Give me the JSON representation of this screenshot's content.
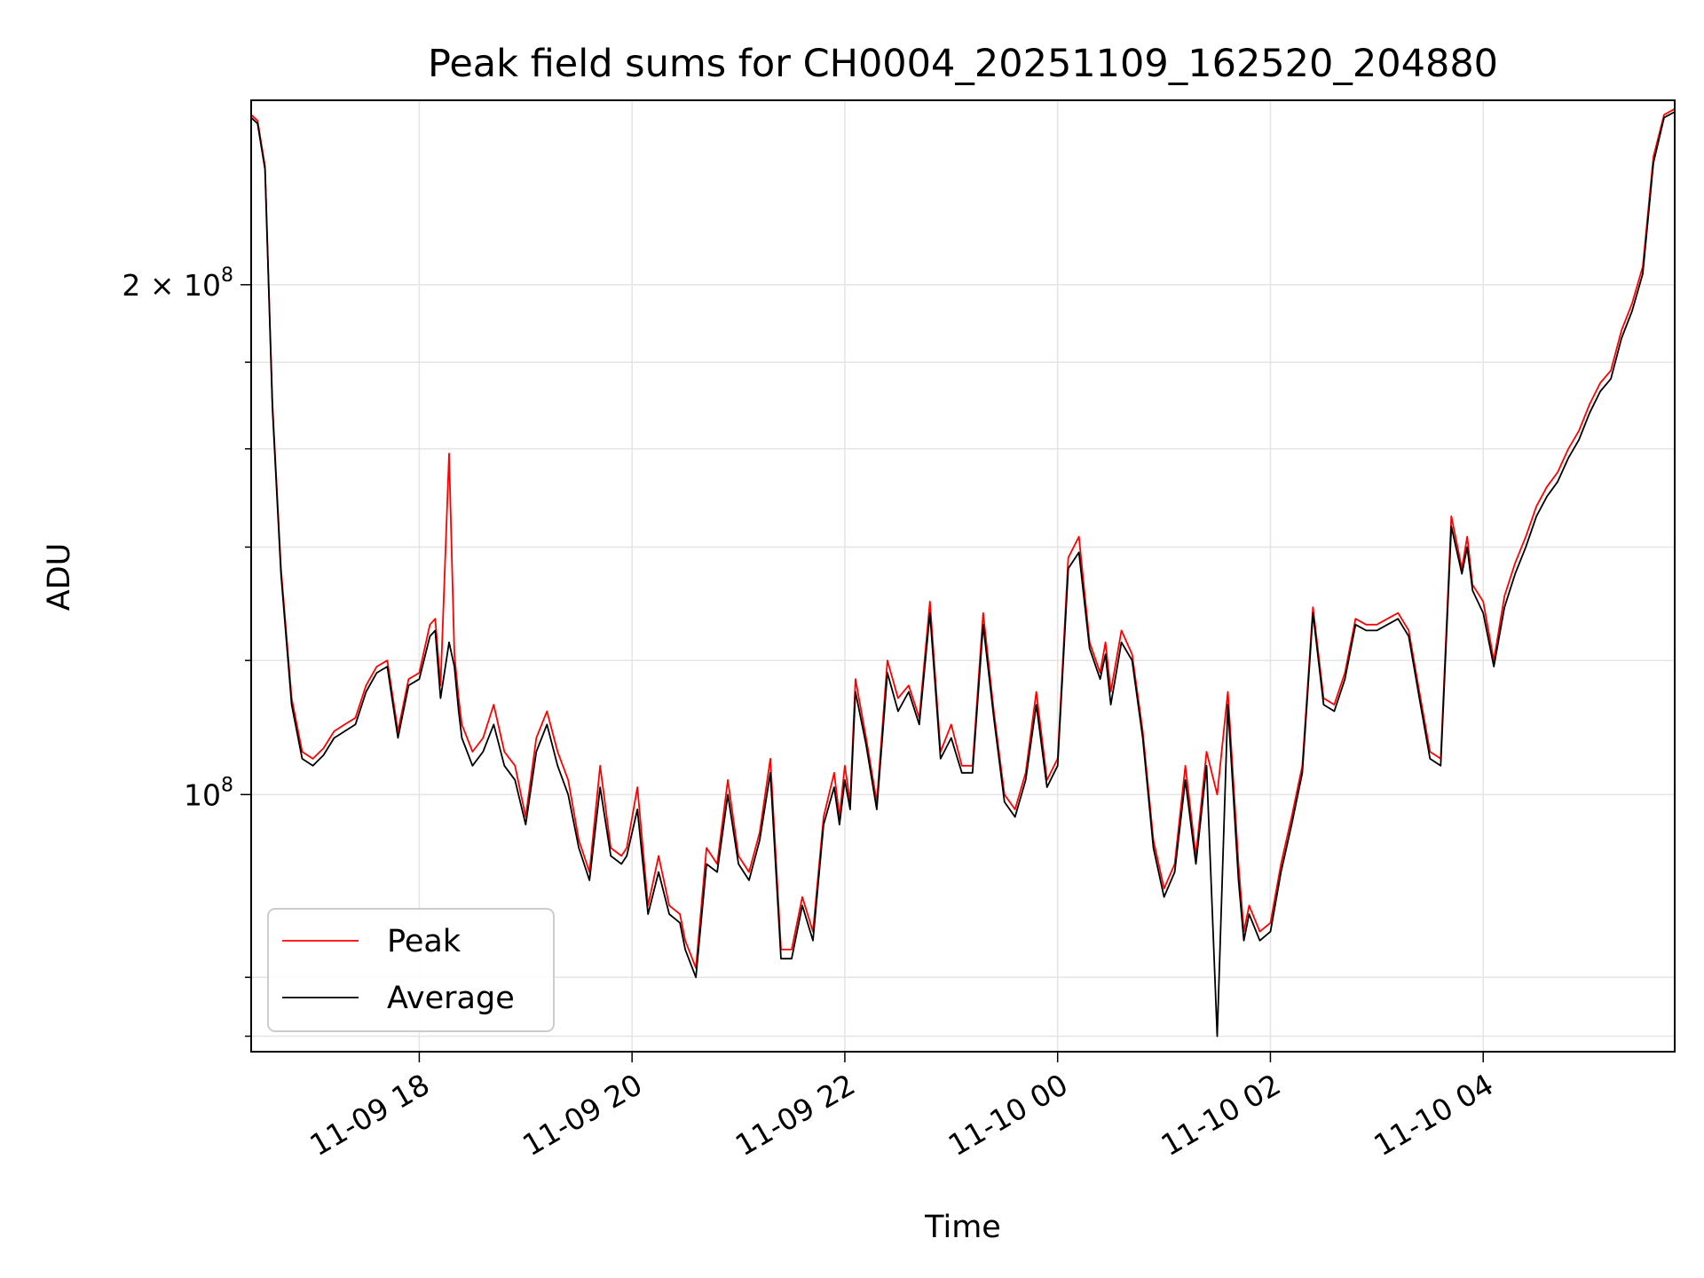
{
  "chart_data": {
    "type": "line",
    "title": "Peak field sums for CH0004_20251109_162520_204880",
    "xlabel": "Time",
    "ylabel": "ADU",
    "yscale": "log",
    "grid": true,
    "legend_loc": "lower left",
    "xlim_hours": [
      -1.58,
      11.8
    ],
    "ylim": [
      70500000,
      257000000
    ],
    "x_unit": "hours since 2025-11-09 18:00",
    "x_ticks": [
      {
        "value": 0,
        "label": "11-09 18"
      },
      {
        "value": 2,
        "label": "11-09 20"
      },
      {
        "value": 4,
        "label": "11-09 22"
      },
      {
        "value": 6,
        "label": "11-10 00"
      },
      {
        "value": 8,
        "label": "11-10 02"
      },
      {
        "value": 10,
        "label": "11-10 04"
      }
    ],
    "y_ticks_major": [
      {
        "value": 100000000,
        "label_base": "10",
        "label_exp": "8",
        "label_prefix": ""
      },
      {
        "value": 200000000,
        "label_base": "10",
        "label_exp": "8",
        "label_prefix": "2 × "
      }
    ],
    "y_ticks_minor": [
      72000000,
      78000000,
      120000000,
      140000000,
      160000000,
      180000000
    ],
    "series": [
      {
        "name": "Peak",
        "color": "#ff0000",
        "x": [
          -1.58,
          -1.52,
          -1.45,
          -1.38,
          -1.3,
          -1.2,
          -1.1,
          -1.0,
          -0.9,
          -0.8,
          -0.7,
          -0.6,
          -0.5,
          -0.4,
          -0.3,
          -0.2,
          -0.1,
          0.0,
          0.1,
          0.15,
          0.2,
          0.28,
          0.33,
          0.37,
          0.4,
          0.5,
          0.6,
          0.7,
          0.8,
          0.9,
          1.0,
          1.1,
          1.2,
          1.3,
          1.4,
          1.5,
          1.6,
          1.7,
          1.8,
          1.9,
          1.95,
          2.05,
          2.15,
          2.25,
          2.35,
          2.45,
          2.5,
          2.6,
          2.7,
          2.8,
          2.9,
          3.0,
          3.1,
          3.2,
          3.3,
          3.4,
          3.5,
          3.6,
          3.7,
          3.8,
          3.9,
          3.95,
          4.0,
          4.05,
          4.1,
          4.2,
          4.3,
          4.4,
          4.5,
          4.6,
          4.7,
          4.8,
          4.9,
          5.0,
          5.1,
          5.2,
          5.3,
          5.4,
          5.5,
          5.6,
          5.7,
          5.8,
          5.9,
          6.0,
          6.1,
          6.2,
          6.3,
          6.4,
          6.45,
          6.5,
          6.6,
          6.7,
          6.8,
          6.9,
          7.0,
          7.1,
          7.2,
          7.3,
          7.4,
          7.5,
          7.6,
          7.7,
          7.75,
          7.8,
          7.9,
          8.0,
          8.1,
          8.2,
          8.3,
          8.4,
          8.5,
          8.6,
          8.7,
          8.8,
          8.9,
          9.0,
          9.1,
          9.2,
          9.3,
          9.4,
          9.5,
          9.6,
          9.7,
          9.8,
          9.85,
          9.9,
          10.0,
          10.1,
          10.2,
          10.3,
          10.4,
          10.5,
          10.6,
          10.7,
          10.8,
          10.9,
          11.0,
          11.1,
          11.2,
          11.3,
          11.4,
          11.5,
          11.6,
          11.7,
          11.8
        ],
        "values": [
          252000000,
          250000000,
          235000000,
          170000000,
          136000000,
          114000000,
          106000000,
          105000000,
          106500000,
          109000000,
          110000000,
          111000000,
          116000000,
          119000000,
          120000000,
          109000000,
          117000000,
          118000000,
          126000000,
          127000000,
          116000000,
          159000000,
          121000000,
          114000000,
          110000000,
          106000000,
          108000000,
          113000000,
          106000000,
          104000000,
          97000000,
          108000000,
          112000000,
          106000000,
          102000000,
          94000000,
          90000000,
          104000000,
          93000000,
          92000000,
          93000000,
          101000000,
          86000000,
          92000000,
          86000000,
          85000000,
          82000000,
          79000000,
          93000000,
          91000000,
          102000000,
          92000000,
          90000000,
          95000000,
          105000000,
          81000000,
          81000000,
          87000000,
          83000000,
          97000000,
          103000000,
          97000000,
          104000000,
          99000000,
          117000000,
          108000000,
          99000000,
          120000000,
          114000000,
          116000000,
          111000000,
          130000000,
          106000000,
          110000000,
          104000000,
          104000000,
          128000000,
          112000000,
          100000000,
          98000000,
          103000000,
          115000000,
          102000000,
          105000000,
          138000000,
          142000000,
          123000000,
          118000000,
          123000000,
          115000000,
          125000000,
          121000000,
          109000000,
          94000000,
          88000000,
          91000000,
          104000000,
          92000000,
          106000000,
          100000000,
          115000000,
          91000000,
          83000000,
          86000000,
          83000000,
          84000000,
          91000000,
          97000000,
          104000000,
          129000000,
          114000000,
          113000000,
          118000000,
          127000000,
          126000000,
          126000000,
          127000000,
          128000000,
          125000000,
          115000000,
          106000000,
          105000000,
          146000000,
          136000000,
          142000000,
          133000000,
          130000000,
          120000000,
          131000000,
          137000000,
          142000000,
          148000000,
          152000000,
          155000000,
          160000000,
          164000000,
          170000000,
          175000000,
          178000000,
          188000000,
          195000000,
          205000000,
          238000000,
          252000000,
          254000000
        ]
      },
      {
        "name": "Average",
        "color": "#000000",
        "x": [
          -1.58,
          -1.52,
          -1.45,
          -1.38,
          -1.3,
          -1.2,
          -1.1,
          -1.0,
          -0.9,
          -0.8,
          -0.7,
          -0.6,
          -0.5,
          -0.4,
          -0.3,
          -0.2,
          -0.1,
          0.0,
          0.1,
          0.15,
          0.2,
          0.28,
          0.33,
          0.37,
          0.4,
          0.5,
          0.6,
          0.7,
          0.8,
          0.9,
          1.0,
          1.1,
          1.2,
          1.3,
          1.4,
          1.5,
          1.6,
          1.7,
          1.8,
          1.9,
          1.95,
          2.05,
          2.15,
          2.25,
          2.35,
          2.45,
          2.5,
          2.6,
          2.7,
          2.8,
          2.9,
          3.0,
          3.1,
          3.2,
          3.3,
          3.4,
          3.5,
          3.6,
          3.7,
          3.8,
          3.9,
          3.95,
          4.0,
          4.05,
          4.1,
          4.2,
          4.3,
          4.4,
          4.5,
          4.6,
          4.7,
          4.8,
          4.9,
          5.0,
          5.1,
          5.2,
          5.3,
          5.4,
          5.5,
          5.6,
          5.7,
          5.8,
          5.9,
          6.0,
          6.1,
          6.2,
          6.3,
          6.4,
          6.45,
          6.5,
          6.6,
          6.7,
          6.8,
          6.9,
          7.0,
          7.1,
          7.2,
          7.3,
          7.4,
          7.5,
          7.6,
          7.7,
          7.75,
          7.8,
          7.9,
          8.0,
          8.1,
          8.2,
          8.3,
          8.4,
          8.5,
          8.6,
          8.7,
          8.8,
          8.9,
          9.0,
          9.1,
          9.2,
          9.3,
          9.4,
          9.5,
          9.6,
          9.7,
          9.8,
          9.85,
          9.9,
          10.0,
          10.1,
          10.2,
          10.3,
          10.4,
          10.5,
          10.6,
          10.7,
          10.8,
          10.9,
          11.0,
          11.1,
          11.2,
          11.3,
          11.4,
          11.5,
          11.6,
          11.7,
          11.8
        ],
        "values": [
          251000000,
          249000000,
          234000000,
          169000000,
          135000000,
          113000000,
          105000000,
          104000000,
          105500000,
          108000000,
          109000000,
          110000000,
          115000000,
          118000000,
          119000000,
          108000000,
          116000000,
          117000000,
          124000000,
          125000000,
          114000000,
          123000000,
          119000000,
          112000000,
          108000000,
          104000000,
          106000000,
          110000000,
          104000000,
          102000000,
          96000000,
          106000000,
          110000000,
          104000000,
          100000000,
          93000000,
          89000000,
          101000000,
          92000000,
          91000000,
          92000000,
          98000000,
          85000000,
          90000000,
          85000000,
          84000000,
          81000000,
          78000000,
          91000000,
          90000000,
          100000000,
          91000000,
          89000000,
          94000000,
          103000000,
          80000000,
          80000000,
          86000000,
          82000000,
          96000000,
          101000000,
          96000000,
          102000000,
          98000000,
          115000000,
          107000000,
          98000000,
          118000000,
          112000000,
          115000000,
          110000000,
          128000000,
          105000000,
          108000000,
          103000000,
          103000000,
          126000000,
          111000000,
          99000000,
          97000000,
          102000000,
          113000000,
          101000000,
          104000000,
          136000000,
          139000000,
          122000000,
          117000000,
          121000000,
          113000000,
          123000000,
          120000000,
          108000000,
          93000000,
          87000000,
          90000000,
          102000000,
          91000000,
          104000000,
          72000000,
          113000000,
          89000000,
          82000000,
          85000000,
          82000000,
          83000000,
          90000000,
          96000000,
          103000000,
          128000000,
          113000000,
          112000000,
          117000000,
          126000000,
          125000000,
          125000000,
          126000000,
          127000000,
          124000000,
          114000000,
          105000000,
          104000000,
          144000000,
          135000000,
          140000000,
          132000000,
          128000000,
          119000000,
          129000000,
          135000000,
          140000000,
          146000000,
          150000000,
          153000000,
          158000000,
          162000000,
          168000000,
          173000000,
          176000000,
          186000000,
          193000000,
          203000000,
          236000000,
          251000000,
          253000000
        ]
      }
    ]
  }
}
